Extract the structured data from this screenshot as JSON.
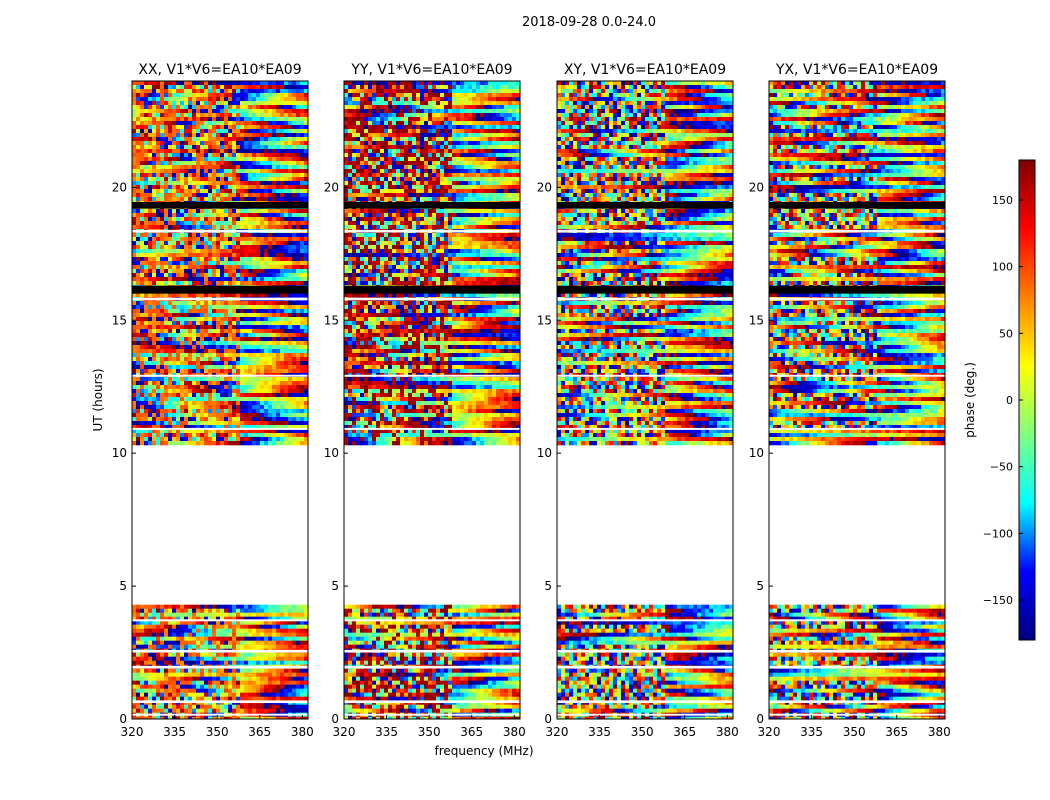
{
  "chart_data": {
    "type": "heatmap",
    "suptitle": "2018-09-28 0.0-24.0",
    "xlabel": "frequency (MHz)",
    "ylabel": "UT (hours)",
    "xlim": [
      320,
      382
    ],
    "ylim": [
      0,
      24
    ],
    "xticks": [
      "320",
      "335",
      "350",
      "365",
      "380"
    ],
    "yticks": [
      "0",
      "5",
      "10",
      "15",
      "20"
    ],
    "panels": [
      {
        "title": "XX, V1*V6=EA10*EA09",
        "pol": "XX"
      },
      {
        "title": "YY, V1*V6=EA10*EA09",
        "pol": "YY"
      },
      {
        "title": "XY, V1*V6=EA10*EA09",
        "pol": "XY"
      },
      {
        "title": "YX, V1*V6=EA10*EA09",
        "pol": "YX"
      }
    ],
    "data_coverage_ut_hours": [
      [
        0.0,
        4.3
      ],
      [
        10.45,
        24.0
      ]
    ],
    "colorbar": {
      "label": "phase (deg.)",
      "range": [
        -180,
        180
      ],
      "ticks": [
        "150",
        "100",
        "50",
        "0",
        "−50",
        "−100",
        "−150"
      ],
      "colormap": "jet",
      "colors": [
        "#000080",
        "#0000ff",
        "#00ffff",
        "#80ff80",
        "#ffff00",
        "#ff8000",
        "#ff0000",
        "#800000"
      ]
    }
  }
}
